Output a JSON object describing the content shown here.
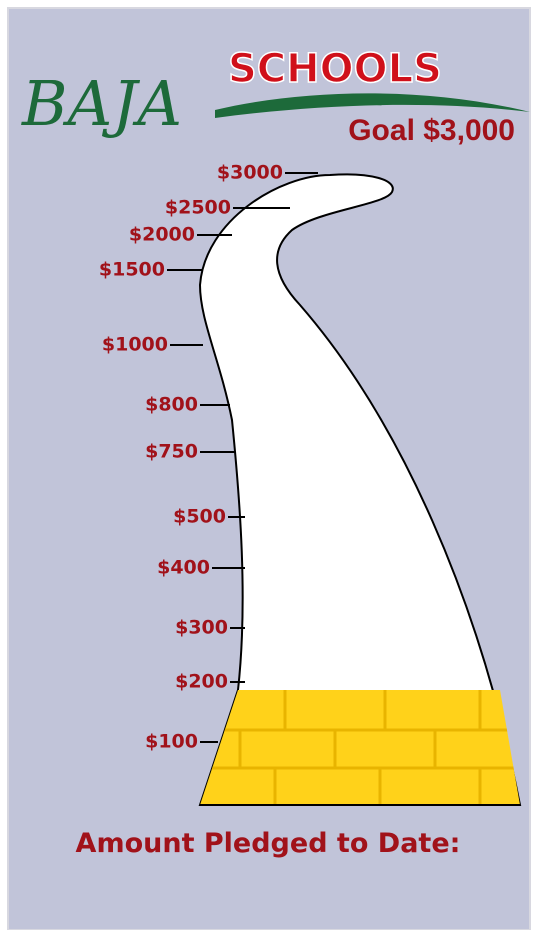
{
  "header": {
    "logo_left": "BAJA",
    "logo_right": "SCHOOLS",
    "goal": "Goal $3,000"
  },
  "ticks": [
    "$3000",
    "$2500",
    "$2000",
    "$1500",
    "$1000",
    "$800",
    "$750",
    "$500",
    "$400",
    "$300",
    "$200",
    "$100"
  ],
  "footer": {
    "label": "Amount Pledged to Date:"
  }
}
